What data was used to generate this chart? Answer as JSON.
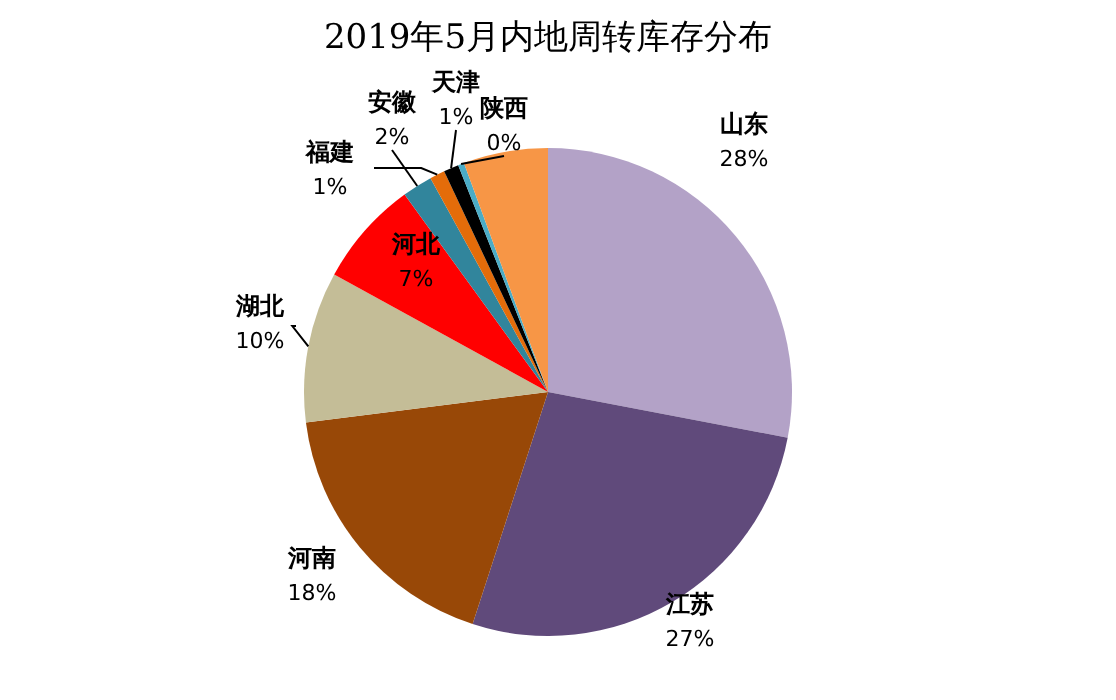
{
  "chart_data": {
    "type": "pie",
    "title": "2019年5月内地周转库存分布",
    "categories": [
      "山东",
      "江苏",
      "河南",
      "湖北",
      "河北",
      "安徽",
      "福建",
      "天津",
      "陕西",
      null
    ],
    "values": [
      28,
      27,
      18,
      10,
      7,
      2,
      1,
      1,
      0.4,
      5.6
    ],
    "value_labels": [
      "28%",
      "27%",
      "18%",
      "10%",
      "7%",
      "2%",
      "1%",
      "1%",
      "0%",
      null
    ],
    "colors": [
      "#b3a2c7",
      "#604a7b",
      "#984807",
      "#c4bd97",
      "#ff0000",
      "#31859c",
      "#e46c0a",
      "#000000",
      "#4bacc6",
      "#f79646"
    ]
  }
}
